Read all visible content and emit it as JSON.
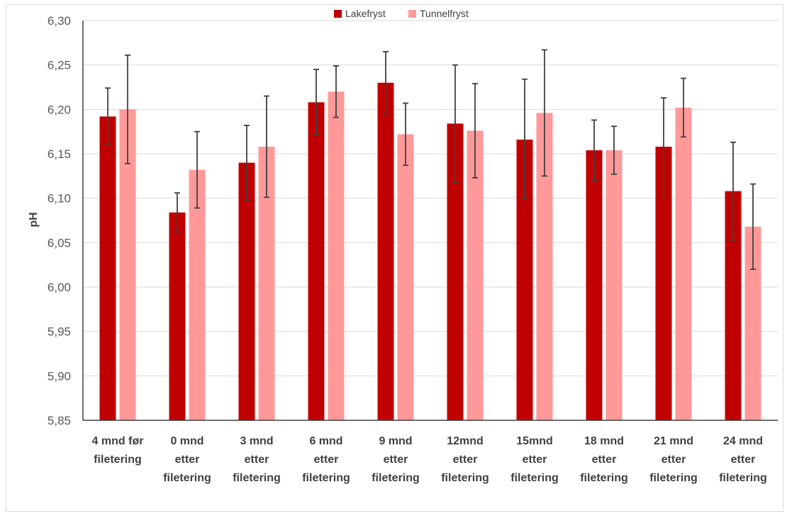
{
  "chart_data": {
    "type": "bar",
    "title": "",
    "xlabel": "",
    "ylabel": "pH",
    "ylim": [
      5.85,
      6.3
    ],
    "ytick_step": 0.05,
    "ytick_labels": [
      "5,85",
      "5,90",
      "5,95",
      "6,00",
      "6,05",
      "6,10",
      "6,15",
      "6,20",
      "6,25",
      "6,30"
    ],
    "grid": "horizontal",
    "legend_position": "top-center",
    "categories": [
      [
        "4 mnd før",
        "filetering"
      ],
      [
        "0 mnd",
        "etter",
        "filetering"
      ],
      [
        "3 mnd",
        "etter",
        "filetering"
      ],
      [
        "6 mnd",
        "etter",
        "filetering"
      ],
      [
        "9 mnd",
        "etter",
        "filetering"
      ],
      [
        "12mnd",
        "etter",
        "filetering"
      ],
      [
        "15mnd",
        "etter",
        "filetering"
      ],
      [
        "18 mnd",
        "etter",
        "filetering"
      ],
      [
        "21 mnd",
        "etter",
        "filetering"
      ],
      [
        "24 mnd",
        "etter",
        "filetering"
      ]
    ],
    "series": [
      {
        "name": "Lakefryst",
        "color": "#c00000",
        "values": [
          6.192,
          6.084,
          6.14,
          6.208,
          6.23,
          6.184,
          6.166,
          6.154,
          6.158,
          6.108
        ],
        "error_low": [
          6.16,
          6.062,
          6.098,
          6.172,
          6.195,
          6.118,
          6.099,
          6.12,
          6.103,
          6.053
        ],
        "error_high": [
          6.224,
          6.106,
          6.182,
          6.245,
          6.265,
          6.25,
          6.234,
          6.188,
          6.213,
          6.163
        ]
      },
      {
        "name": "Tunnelfryst",
        "color": "#ff9999",
        "values": [
          6.2,
          6.132,
          6.158,
          6.22,
          6.172,
          6.176,
          6.196,
          6.154,
          6.202,
          6.068
        ],
        "error_low": [
          6.139,
          6.089,
          6.101,
          6.191,
          6.137,
          6.123,
          6.125,
          6.127,
          6.169,
          6.02
        ],
        "error_high": [
          6.261,
          6.175,
          6.215,
          6.249,
          6.207,
          6.229,
          6.267,
          6.181,
          6.235,
          6.116
        ]
      }
    ],
    "error_bar_color": "#404040",
    "grid_color": "#d9d9d9",
    "axis_color": "#404040"
  }
}
